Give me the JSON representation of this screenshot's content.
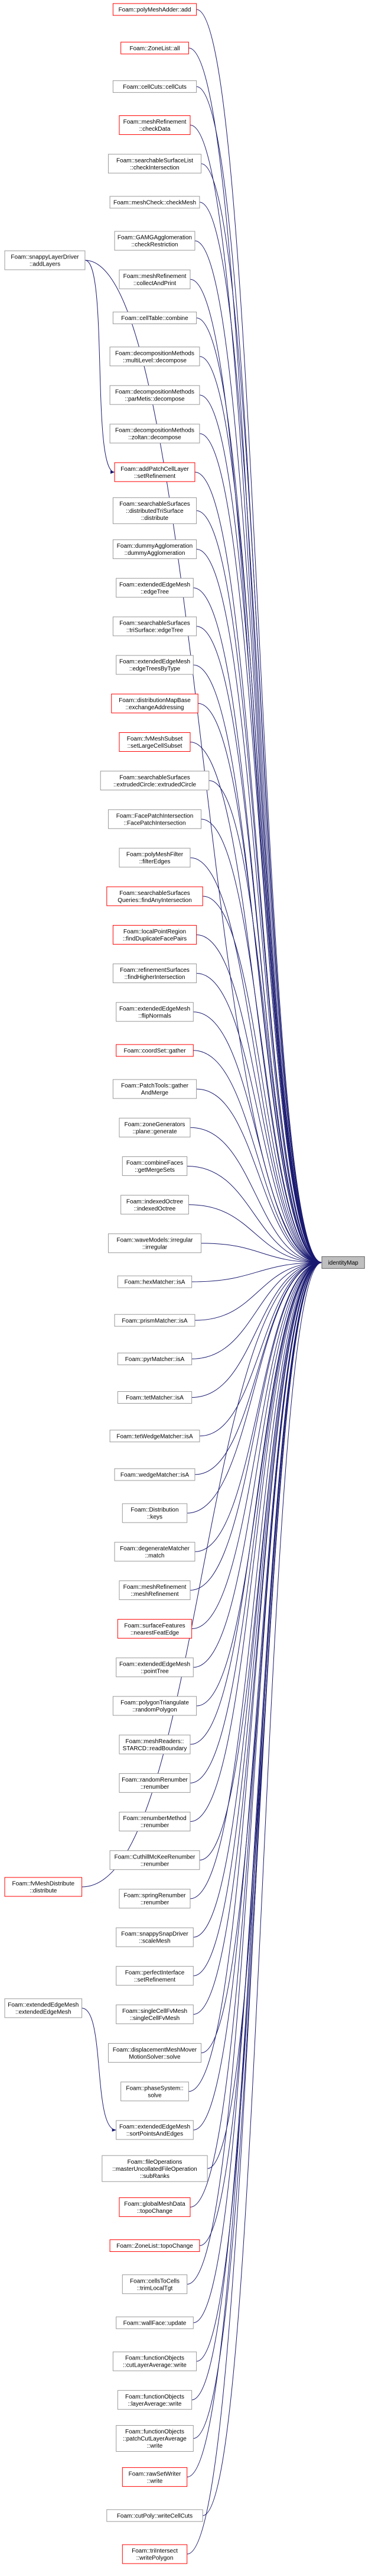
{
  "target": {
    "label": "identityMap",
    "fill": "#bfbfbf",
    "border": "#666666"
  },
  "edge_color": "#191970",
  "callers": [
    {
      "lines": [
        "Foam::polyMeshAdder::add"
      ],
      "border": "#ff0000"
    },
    {
      "lines": [
        "Foam::ZoneList::all"
      ],
      "border": "#ff0000"
    },
    {
      "lines": [
        "Foam::cellCuts::cellCuts"
      ],
      "border": "#999999"
    },
    {
      "lines": [
        "Foam::meshRefinement",
        "::checkData"
      ],
      "border": "#ff0000"
    },
    {
      "lines": [
        "Foam::searchableSurfaceList",
        "::checkIntersection"
      ],
      "border": "#999999"
    },
    {
      "lines": [
        "Foam::meshCheck::checkMesh"
      ],
      "border": "#999999"
    },
    {
      "lines": [
        "Foam::GAMGAgglomeration",
        "::checkRestriction"
      ],
      "border": "#999999"
    },
    {
      "lines": [
        "Foam::meshRefinement",
        "::collectAndPrint"
      ],
      "border": "#999999"
    },
    {
      "lines": [
        "Foam::cellTable::combine"
      ],
      "border": "#999999"
    },
    {
      "lines": [
        "Foam::decompositionMethods",
        "::multiLevel::decompose"
      ],
      "border": "#999999"
    },
    {
      "lines": [
        "Foam::decompositionMethods",
        "::parMetis::decompose"
      ],
      "border": "#999999"
    },
    {
      "lines": [
        "Foam::decompositionMethods",
        "::zoltan::decompose"
      ],
      "border": "#999999"
    },
    {
      "lines": [
        "Foam::addPatchCellLayer",
        "::setRefinement"
      ],
      "border": "#ff0000"
    },
    {
      "lines": [
        "Foam::searchableSurfaces",
        "::distributedTriSurface",
        "::distribute"
      ],
      "border": "#999999"
    },
    {
      "lines": [
        "Foam::dummyAgglomeration",
        "::dummyAgglomeration"
      ],
      "border": "#999999"
    },
    {
      "lines": [
        "Foam::extendedEdgeMesh",
        "::edgeTree"
      ],
      "border": "#999999"
    },
    {
      "lines": [
        "Foam::searchableSurfaces",
        "::triSurface::edgeTree"
      ],
      "border": "#999999"
    },
    {
      "lines": [
        "Foam::extendedEdgeMesh",
        "::edgeTreesByType"
      ],
      "border": "#999999"
    },
    {
      "lines": [
        "Foam::distributionMapBase",
        "::exchangeAddressing"
      ],
      "border": "#ff0000"
    },
    {
      "lines": [
        "Foam::fvMeshSubset",
        "::setLargeCellSubset"
      ],
      "border": "#ff0000"
    },
    {
      "lines": [
        "Foam::searchableSurfaces",
        "::extrudedCircle::extrudedCircle"
      ],
      "border": "#999999"
    },
    {
      "lines": [
        "Foam::FacePatchIntersection",
        "::FacePatchIntersection"
      ],
      "border": "#999999"
    },
    {
      "lines": [
        "Foam::polyMeshFilter",
        "::filterEdges"
      ],
      "border": "#999999"
    },
    {
      "lines": [
        "Foam::searchableSurfaces",
        "Queries::findAnyIntersection"
      ],
      "border": "#ff0000"
    },
    {
      "lines": [
        "Foam::localPointRegion",
        "::findDuplicateFacePairs"
      ],
      "border": "#ff0000"
    },
    {
      "lines": [
        "Foam::refinementSurfaces",
        "::findHigherIntersection"
      ],
      "border": "#999999"
    },
    {
      "lines": [
        "Foam::extendedEdgeMesh",
        "::flipNormals"
      ],
      "border": "#999999"
    },
    {
      "lines": [
        "Foam::coordSet::gather"
      ],
      "border": "#ff0000"
    },
    {
      "lines": [
        "Foam::PatchTools::gather",
        "AndMerge"
      ],
      "border": "#999999"
    },
    {
      "lines": [
        "Foam::zoneGenerators",
        "::plane::generate"
      ],
      "border": "#999999"
    },
    {
      "lines": [
        "Foam::combineFaces",
        "::getMergeSets"
      ],
      "border": "#999999"
    },
    {
      "lines": [
        "Foam::indexedOctree",
        "::indexedOctree"
      ],
      "border": "#999999"
    },
    {
      "lines": [
        "Foam::waveModels::irregular",
        "::irregular"
      ],
      "border": "#999999"
    },
    {
      "lines": [
        "Foam::hexMatcher::isA"
      ],
      "border": "#999999"
    },
    {
      "lines": [
        "Foam::prismMatcher::isA"
      ],
      "border": "#999999"
    },
    {
      "lines": [
        "Foam::pyrMatcher::isA"
      ],
      "border": "#999999"
    },
    {
      "lines": [
        "Foam::tetMatcher::isA"
      ],
      "border": "#999999"
    },
    {
      "lines": [
        "Foam::tetWedgeMatcher::isA"
      ],
      "border": "#999999"
    },
    {
      "lines": [
        "Foam::wedgeMatcher::isA"
      ],
      "border": "#999999"
    },
    {
      "lines": [
        "Foam::Distribution",
        "::keys"
      ],
      "border": "#999999"
    },
    {
      "lines": [
        "Foam::degenerateMatcher",
        "::match"
      ],
      "border": "#999999"
    },
    {
      "lines": [
        "Foam::meshRefinement",
        "::meshRefinement"
      ],
      "border": "#999999"
    },
    {
      "lines": [
        "Foam::surfaceFeatures",
        "::nearestFeatEdge"
      ],
      "border": "#ff0000"
    },
    {
      "lines": [
        "Foam::extendedEdgeMesh",
        "::pointTree"
      ],
      "border": "#999999"
    },
    {
      "lines": [
        "Foam::polygonTriangulate",
        "::randomPolygon"
      ],
      "border": "#999999"
    },
    {
      "lines": [
        "Foam::meshReaders::",
        "STARCD::readBoundary"
      ],
      "border": "#999999"
    },
    {
      "lines": [
        "Foam::randomRenumber",
        "::renumber"
      ],
      "border": "#999999"
    },
    {
      "lines": [
        "Foam::renumberMethod",
        "::renumber"
      ],
      "border": "#999999"
    },
    {
      "lines": [
        "Foam::CuthillMcKeeRenumber",
        "::renumber"
      ],
      "border": "#999999"
    },
    {
      "lines": [
        "Foam::springRenumber",
        "::renumber"
      ],
      "border": "#999999"
    },
    {
      "lines": [
        "Foam::snappySnapDriver",
        "::scaleMesh"
      ],
      "border": "#999999"
    },
    {
      "lines": [
        "Foam::perfectInterface",
        "::setRefinement"
      ],
      "border": "#999999"
    },
    {
      "lines": [
        "Foam::singleCellFvMesh",
        "::singleCellFvMesh"
      ],
      "border": "#999999"
    },
    {
      "lines": [
        "Foam::displacementMeshMover",
        "MotionSolver::solve"
      ],
      "border": "#999999"
    },
    {
      "lines": [
        "Foam::phaseSystem::",
        "solve"
      ],
      "border": "#999999"
    },
    {
      "lines": [
        "Foam::extendedEdgeMesh",
        "::sortPointsAndEdges"
      ],
      "border": "#999999"
    },
    {
      "lines": [
        "Foam::fileOperations",
        "::masterUncollatedFileOperation",
        "::subRanks"
      ],
      "border": "#999999"
    },
    {
      "lines": [
        "Foam::globalMeshData",
        "::topoChange"
      ],
      "border": "#ff0000"
    },
    {
      "lines": [
        "Foam::ZoneList::topoChange"
      ],
      "border": "#ff0000"
    },
    {
      "lines": [
        "Foam::cellsToCells",
        "::trimLocalTgt"
      ],
      "border": "#999999"
    },
    {
      "lines": [
        "Foam::wallFace::update"
      ],
      "border": "#999999"
    },
    {
      "lines": [
        "Foam::functionObjects",
        "::cutLayerAverage::write"
      ],
      "border": "#999999"
    },
    {
      "lines": [
        "Foam::functionObjects",
        "::layerAverage::write"
      ],
      "border": "#999999"
    },
    {
      "lines": [
        "Foam::functionObjects",
        "::patchCutLayerAverage",
        "::write"
      ],
      "border": "#999999"
    },
    {
      "lines": [
        "Foam::rawSetWriter",
        "::write"
      ],
      "border": "#ff0000"
    },
    {
      "lines": [
        "Foam::cutPoly::writeCellCuts"
      ],
      "border": "#999999"
    },
    {
      "lines": [
        "Foam::triIntersect",
        "::writePolygon"
      ],
      "border": "#ff0000"
    }
  ],
  "left_callers": [
    {
      "lines": [
        "Foam::snappyLayerDriver",
        "::addLayers"
      ],
      "border": "#999999"
    },
    {
      "lines": [
        "Foam::fvMeshDistribute",
        "::distribute"
      ],
      "border": "#ff0000"
    },
    {
      "lines": [
        "Foam::extendedEdgeMesh",
        "::extendedEdgeMesh"
      ],
      "border": "#999999"
    }
  ]
}
